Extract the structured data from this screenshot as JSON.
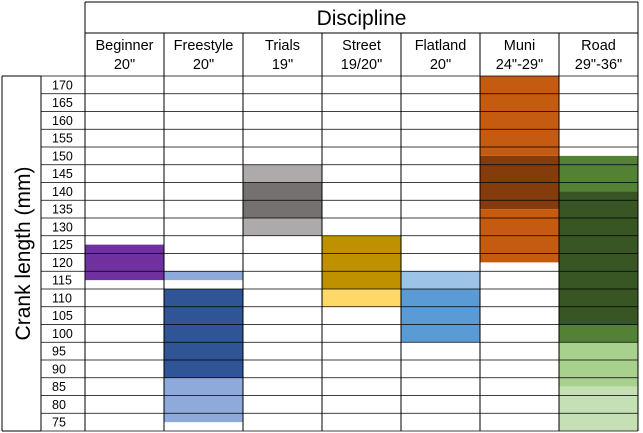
{
  "chart_data": {
    "type": "heatmap",
    "title": "Discipline",
    "ylabel": "Crank length (mm)",
    "y_ticks": [
      170,
      165,
      160,
      155,
      150,
      145,
      140,
      135,
      130,
      125,
      120,
      115,
      110,
      105,
      100,
      95,
      90,
      85,
      80,
      75
    ],
    "columns": [
      {
        "name": "Beginner",
        "sub": "20\"",
        "bands": [
          {
            "from": 115,
            "to": 125,
            "color": "#7030a0"
          }
        ]
      },
      {
        "name": "Freestyle",
        "sub": "20\"",
        "bands": [
          {
            "from": 115,
            "to": 117.5,
            "color": "#8eaadb"
          },
          {
            "from": 87.5,
            "to": 112.5,
            "color": "#2f5597"
          },
          {
            "from": 75,
            "to": 87.5,
            "color": "#8eaadb"
          }
        ]
      },
      {
        "name": "Trials",
        "sub": "19\"",
        "bands": [
          {
            "from": 142.5,
            "to": 147.5,
            "color": "#aeaaaa"
          },
          {
            "from": 132.5,
            "to": 142.5,
            "color": "#767171"
          },
          {
            "from": 127.5,
            "to": 132.5,
            "color": "#aeaaaa"
          }
        ]
      },
      {
        "name": "Street",
        "sub": "19/20\"",
        "bands": [
          {
            "from": 112.5,
            "to": 127.5,
            "color": "#bf9000"
          },
          {
            "from": 107.5,
            "to": 112.5,
            "color": "#ffd966"
          }
        ]
      },
      {
        "name": "Flatland",
        "sub": "20\"",
        "bands": [
          {
            "from": 112.5,
            "to": 117.5,
            "color": "#9dc3e6"
          },
          {
            "from": 97.5,
            "to": 112.5,
            "color": "#5b9bd5"
          }
        ]
      },
      {
        "name": "Muni",
        "sub": "24\"-29\"",
        "bands": [
          {
            "from": 150,
            "to": 172.5,
            "color": "#c55a11"
          },
          {
            "from": 135,
            "to": 150,
            "color": "#843c0c"
          },
          {
            "from": 120,
            "to": 135,
            "color": "#c55a11"
          }
        ]
      },
      {
        "name": "Road",
        "sub": "29\"-36\"",
        "bands": [
          {
            "from": 140,
            "to": 150,
            "color": "#548235"
          },
          {
            "from": 102.5,
            "to": 140,
            "color": "#375623"
          },
          {
            "from": 97.5,
            "to": 102.5,
            "color": "#548235"
          },
          {
            "from": 85,
            "to": 97.5,
            "color": "#a9d18e"
          },
          {
            "from": 72.5,
            "to": 85,
            "color": "#c5e0b4"
          }
        ]
      }
    ],
    "ylim": [
      72.5,
      172.5
    ],
    "grid": true
  }
}
